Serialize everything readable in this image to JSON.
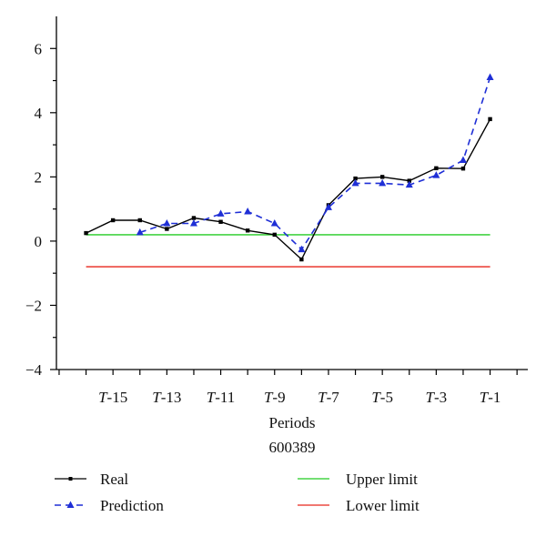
{
  "chart_data": {
    "type": "line",
    "title": "",
    "xlabel": "Periods",
    "subtitle": "600389",
    "ylabel": "",
    "ylim": [
      -4,
      7
    ],
    "yticks": [
      -4,
      -2,
      0,
      2,
      4,
      6
    ],
    "ytick_labels": [
      "−4",
      "−2",
      "0",
      "2",
      "4",
      "6"
    ],
    "x_index": [
      -16,
      -15,
      -14,
      -13,
      -12,
      -11,
      -10,
      -9,
      -8,
      -7,
      -6,
      -5,
      -4,
      -3,
      -2,
      -1
    ],
    "xlim": [
      -17.1,
      0.4
    ],
    "xtick_positions": [
      -15,
      -13,
      -11,
      -9,
      -7,
      -5,
      -3,
      -1
    ],
    "xtick_labels": [
      {
        "t": "T",
        "n": "-15"
      },
      {
        "t": "T",
        "n": "-13"
      },
      {
        "t": "T",
        "n": "-11"
      },
      {
        "t": "T",
        "n": "-9"
      },
      {
        "t": "T",
        "n": "-7"
      },
      {
        "t": "T",
        "n": "-5"
      },
      {
        "t": "T",
        "n": "-3"
      },
      {
        "t": "T",
        "n": "-1"
      }
    ],
    "series": [
      {
        "name": "Real",
        "color": "#000000",
        "style": "solid",
        "marker": "square",
        "x": [
          -16,
          -15,
          -14,
          -13,
          -12,
          -11,
          -10,
          -9,
          -8,
          -7,
          -6,
          -5,
          -4,
          -3,
          -2,
          -1
        ],
        "values": [
          0.25,
          0.65,
          0.65,
          0.38,
          0.72,
          0.6,
          0.33,
          0.2,
          -0.57,
          1.12,
          1.95,
          2.0,
          1.88,
          2.27,
          2.26,
          3.8
        ]
      },
      {
        "name": "Prediction",
        "color": "#1f2fd6",
        "style": "dashed",
        "marker": "triangle",
        "x": [
          -14,
          -13,
          -12,
          -11,
          -10,
          -9,
          -8,
          -7,
          -6,
          -5,
          -4,
          -3,
          -2,
          -1
        ],
        "values": [
          0.27,
          0.55,
          0.55,
          0.85,
          0.92,
          0.55,
          -0.26,
          1.05,
          1.8,
          1.8,
          1.75,
          2.05,
          2.52,
          5.1
        ]
      },
      {
        "name": "Upper limit",
        "color": "#22cc22",
        "style": "solid",
        "x": [
          -16,
          -1
        ],
        "values": [
          0.2,
          0.2
        ]
      },
      {
        "name": "Lower limit",
        "color": "#e8261c",
        "style": "solid",
        "x": [
          -16,
          -1
        ],
        "values": [
          -0.8,
          -0.8
        ]
      }
    ],
    "legend_position": "bottom"
  }
}
